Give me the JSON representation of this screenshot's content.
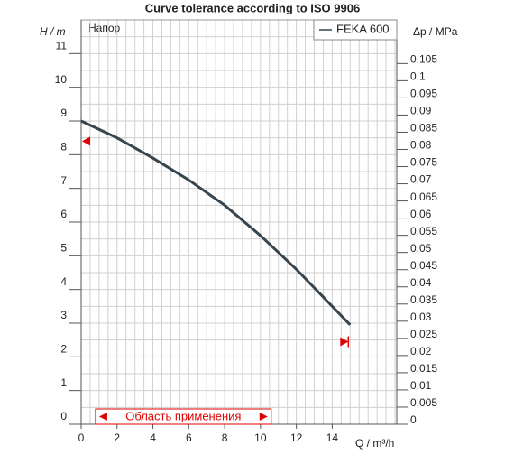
{
  "chart_data": {
    "type": "line",
    "title": "Curve tolerance according to ISO 9906",
    "y_label": "H / m",
    "y2_label": "Δp / MPa",
    "x_label": "Q / m³/h",
    "curve_label": "Напор",
    "x": [
      0,
      2,
      4,
      6,
      8,
      10,
      12,
      14,
      15
    ],
    "series": [
      {
        "name": "FEKA 600",
        "color": "#37454f",
        "values": [
          9,
          8.5,
          7.9,
          7.25,
          6.5,
          5.6,
          4.6,
          3.5,
          2.95
        ]
      }
    ],
    "xlim": [
      0,
      17.6
    ],
    "xticks": [
      0,
      2,
      4,
      6,
      8,
      10,
      12,
      14
    ],
    "ylim": [
      0,
      12
    ],
    "yticks": [
      0,
      1,
      2,
      3,
      4,
      5,
      6,
      7,
      8,
      9,
      10,
      11
    ],
    "y2lim": [
      0,
      0.1177
    ],
    "y2ticks": [
      0,
      {
        "value": 0.005,
        "label": "0,005"
      },
      {
        "value": 0.01,
        "label": "0,01"
      },
      {
        "value": 0.015,
        "label": "0,015"
      },
      {
        "value": 0.02,
        "label": "0,02"
      },
      {
        "value": 0.025,
        "label": "0,025"
      },
      {
        "value": 0.03,
        "label": "0,03"
      },
      {
        "value": 0.035,
        "label": "0,035"
      },
      {
        "value": 0.04,
        "label": "0,04"
      },
      {
        "value": 0.045,
        "label": "0,045"
      },
      {
        "value": 0.05,
        "label": "0,05"
      },
      {
        "value": 0.055,
        "label": "0,055"
      },
      {
        "value": 0.06,
        "label": "0,06"
      },
      {
        "value": 0.065,
        "label": "0,065"
      },
      {
        "value": 0.07,
        "label": "0,07"
      },
      {
        "value": 0.075,
        "label": "0,075"
      },
      {
        "value": 0.08,
        "label": "0,08"
      },
      {
        "value": 0.085,
        "label": "0,085"
      },
      {
        "value": 0.09,
        "label": "0,09"
      },
      {
        "value": 0.095,
        "label": "0,095"
      },
      {
        "value": 0.1,
        "label": "0,1"
      },
      {
        "value": 0.105,
        "label": "0,105"
      }
    ],
    "grid": true,
    "legend": "top-right",
    "tolerance_markers": [
      {
        "x": 0,
        "y": 8.4
      },
      {
        "x": 14.9,
        "y": 2.45
      }
    ],
    "marker_color": "#e00000",
    "application_range": {
      "label": "Область применения",
      "x": [
        0.8,
        10.6
      ]
    }
  }
}
